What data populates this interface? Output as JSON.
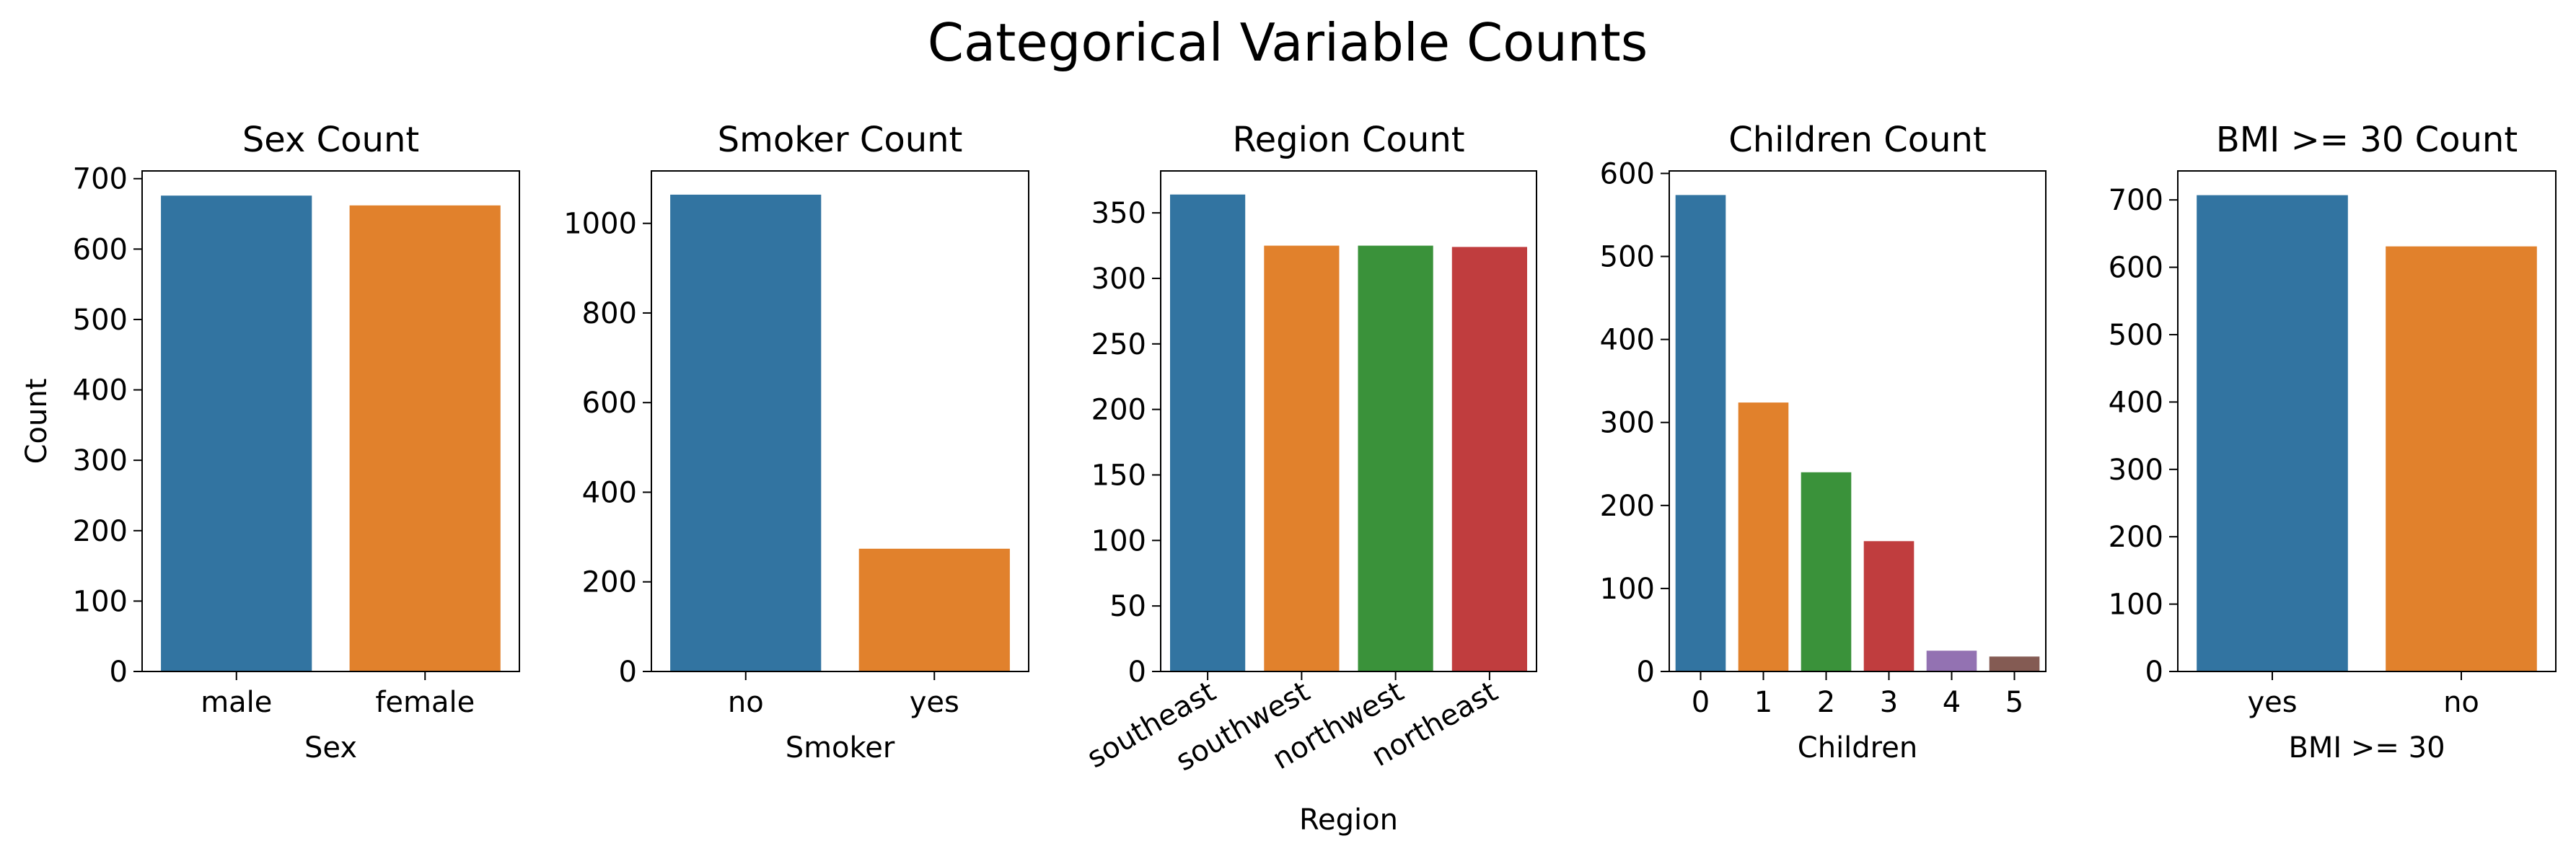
{
  "figure": {
    "title": "Categorical Variable Counts"
  },
  "palette": [
    "#3274a1",
    "#e1812c",
    "#3a923a",
    "#c03d3e",
    "#9372b2",
    "#845b53"
  ],
  "chart_data": [
    {
      "type": "bar",
      "title": "Sex Count",
      "xlabel": "Sex",
      "ylabel": "Count",
      "categories": [
        "male",
        "female"
      ],
      "values": [
        676,
        662
      ],
      "ylim": [
        0,
        711
      ],
      "yticks": [
        0,
        100,
        200,
        300,
        400,
        500,
        600,
        700
      ],
      "xtick_rotation": 0,
      "grid": false,
      "legend": "none"
    },
    {
      "type": "bar",
      "title": "Smoker Count",
      "xlabel": "Smoker",
      "ylabel": "",
      "categories": [
        "no",
        "yes"
      ],
      "values": [
        1064,
        274
      ],
      "ylim": [
        0,
        1117
      ],
      "yticks": [
        0,
        200,
        400,
        600,
        800,
        1000
      ],
      "xtick_rotation": 0,
      "grid": false,
      "legend": "none"
    },
    {
      "type": "bar",
      "title": "Region Count",
      "xlabel": "Region",
      "ylabel": "",
      "categories": [
        "southeast",
        "southwest",
        "northwest",
        "northeast"
      ],
      "values": [
        364,
        325,
        325,
        324
      ],
      "ylim": [
        0,
        382
      ],
      "yticks": [
        0,
        50,
        100,
        150,
        200,
        250,
        300,
        350
      ],
      "xtick_rotation": -30,
      "grid": false,
      "legend": "none"
    },
    {
      "type": "bar",
      "title": "Children Count",
      "xlabel": "Children",
      "ylabel": "",
      "categories": [
        "0",
        "1",
        "2",
        "3",
        "4",
        "5"
      ],
      "values": [
        574,
        324,
        240,
        157,
        25,
        18
      ],
      "ylim": [
        0,
        603
      ],
      "yticks": [
        0,
        100,
        200,
        300,
        400,
        500,
        600
      ],
      "xtick_rotation": 0,
      "grid": false,
      "legend": "none"
    },
    {
      "type": "bar",
      "title": "BMI >= 30 Count",
      "xlabel": "BMI >= 30",
      "ylabel": "",
      "categories": [
        "yes",
        "no"
      ],
      "values": [
        707,
        631
      ],
      "ylim": [
        0,
        743
      ],
      "yticks": [
        0,
        100,
        200,
        300,
        400,
        500,
        600,
        700
      ],
      "xtick_rotation": 0,
      "grid": false,
      "legend": "none"
    }
  ]
}
